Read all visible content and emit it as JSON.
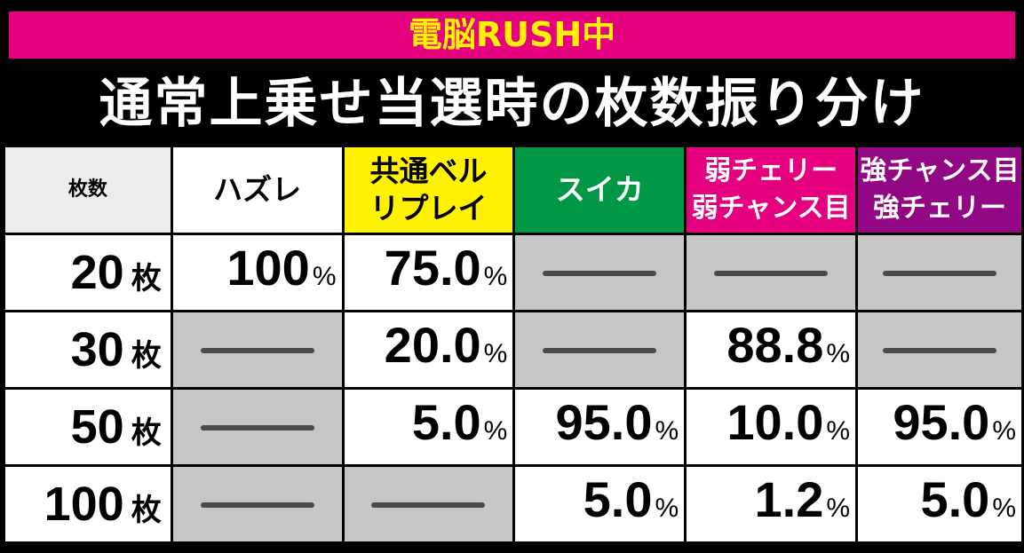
{
  "banner": "電脳RUSH中",
  "title": "通常上乗せ当選時の枚数振り分け",
  "table": {
    "headers": {
      "label": "枚数",
      "hazure": "ハズレ",
      "bell_line1": "共通ベル",
      "bell_line2": "リプレイ",
      "suika": "スイカ",
      "weak_line1": "弱チェリー",
      "weak_line2": "弱チャンス目",
      "strong_line1": "強チャンス目",
      "strong_line2": "強チェリー"
    },
    "unit": "枚",
    "percent": "%",
    "rows": [
      {
        "label": "20",
        "hazure": "100",
        "bell": "75.0",
        "suika": null,
        "weak": null,
        "strong": null
      },
      {
        "label": "30",
        "hazure": null,
        "bell": "20.0",
        "suika": null,
        "weak": "88.8",
        "strong": null
      },
      {
        "label": "50",
        "hazure": null,
        "bell": "5.0",
        "suika": "95.0",
        "weak": "10.0",
        "strong": "95.0"
      },
      {
        "label": "100",
        "hazure": null,
        "bell": null,
        "suika": "5.0",
        "weak": "1.2",
        "strong": "5.0"
      }
    ]
  },
  "colors": {
    "banner_bg": "#e4007f",
    "banner_text": "#fff100",
    "bell_header": "#fff100",
    "suika_header": "#009844",
    "weak_header": "#e4007f",
    "strong_header": "#920783",
    "none_cell": "#c6c6c6"
  }
}
